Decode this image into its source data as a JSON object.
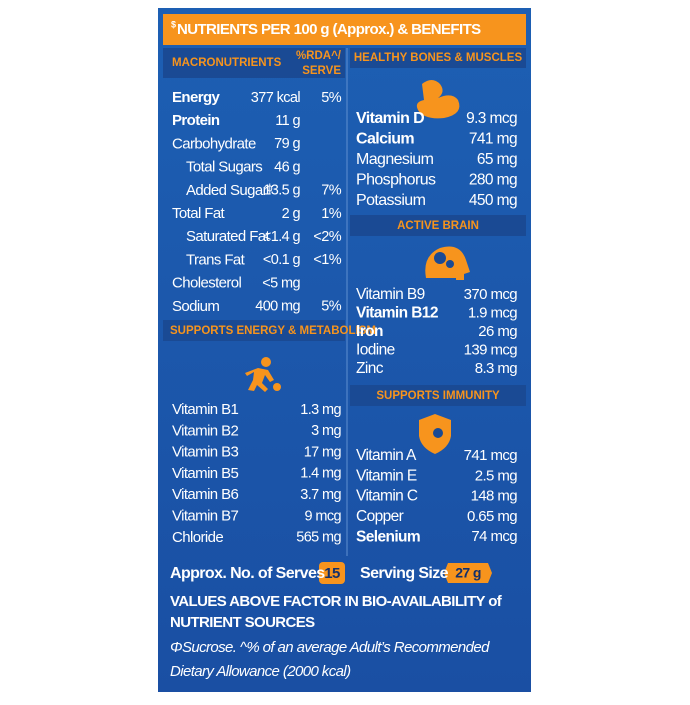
{
  "header": {
    "symbol": "$",
    "title": "NUTRIENTS PER 100 g (Approx.) & BENEFITS"
  },
  "macronutrients": {
    "heading": "MACRONUTRIENTS",
    "rda_heading": [
      "%RDA^/",
      "SERVE"
    ],
    "rows": [
      [
        "Energy",
        "377 kcal",
        "5%"
      ],
      [
        "Protein",
        "11 g"
      ],
      [
        "Carbohydrate",
        "79 g"
      ],
      [
        "Total Sugars",
        "46 g"
      ],
      [
        "Added Sugarᶲ",
        "13.5 g",
        "7%"
      ],
      [
        "Total Fat",
        "2 g",
        "1%"
      ],
      [
        "Saturated Fat",
        "<1.4 g",
        "<2%"
      ],
      [
        "Trans Fat",
        "<0.1 g",
        "<1%"
      ],
      [
        "Cholesterol",
        "<5 mg"
      ],
      [
        "Sodium",
        "400 mg",
        "5%"
      ]
    ]
  },
  "energy_metabolism": {
    "heading": "SUPPORTS ENERGY & METABOLISM",
    "rows": [
      [
        "Vitamin B1",
        "1.3 mg"
      ],
      [
        "Vitamin B2",
        "3 mg"
      ],
      [
        "Vitamin B3",
        "17 mg"
      ],
      [
        "Vitamin B5",
        "1.4 mg"
      ],
      [
        "Vitamin B6",
        "3.7 mg"
      ],
      [
        "Vitamin B7",
        "9 mcg"
      ],
      [
        "Chloride",
        "565 mg"
      ]
    ]
  },
  "bones_muscles": {
    "heading": "HEALTHY BONES & MUSCLES",
    "rows": [
      [
        "Vitamin D",
        "9.3 mcg"
      ],
      [
        "Calcium",
        "741 mg"
      ],
      [
        "Magnesium",
        "65 mg"
      ],
      [
        "Phosphorus",
        "280 mg"
      ],
      [
        "Potassium",
        "450 mg"
      ]
    ]
  },
  "active_brain": {
    "heading": "ACTIVE BRAIN",
    "rows": [
      [
        "Vitamin B9",
        "370 mcg"
      ],
      [
        "Vitamin B12",
        "1.9 mcg"
      ],
      [
        "Iron",
        "26 mg"
      ],
      [
        "Iodine",
        "139 mcg"
      ],
      [
        "Zinc",
        "8.3 mg"
      ]
    ]
  },
  "immunity": {
    "heading": "SUPPORTS IMMUNITY",
    "rows": [
      [
        "Vitamin A",
        "741 mcg"
      ],
      [
        "Vitamin E",
        "2.5 mg"
      ],
      [
        "Vitamin C",
        "148 mg"
      ],
      [
        "Copper",
        "0.65 mg"
      ],
      [
        "Selenium",
        "74 mcg"
      ]
    ]
  },
  "footer": {
    "serves_label": "Approx. No. of Serves",
    "serves": "15",
    "serving_size_label": "Serving Size",
    "serving_size": "27 g",
    "bioavailability_note": [
      "VALUES ABOVE FACTOR IN BIO-AVAILABILITY of",
      "NUTRIENT SOURCES"
    ],
    "footnote": [
      "ΦSucrose. ^% of an average Adult’s Recommended",
      "Dietary Allowance (2000 kcal)"
    ]
  }
}
